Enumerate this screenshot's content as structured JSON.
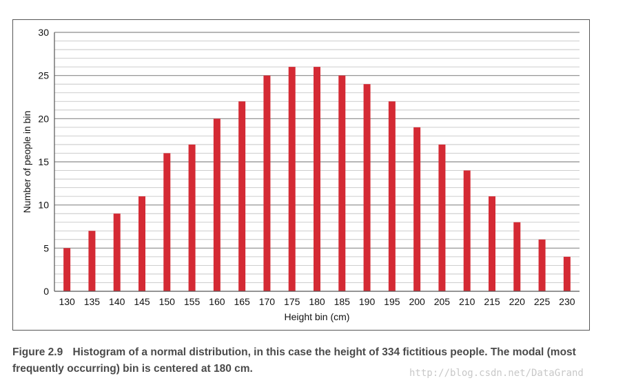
{
  "chart_data": {
    "type": "bar",
    "categories": [
      "130",
      "135",
      "140",
      "145",
      "150",
      "155",
      "160",
      "165",
      "170",
      "175",
      "180",
      "185",
      "190",
      "195",
      "200",
      "205",
      "210",
      "215",
      "220",
      "225",
      "230"
    ],
    "values": [
      5,
      7,
      9,
      11,
      16,
      17,
      20,
      22,
      25,
      26,
      26,
      25,
      24,
      22,
      19,
      17,
      14,
      11,
      8,
      6,
      4
    ],
    "xlabel": "Height bin (cm)",
    "ylabel": "Number of people in bin",
    "ylim": [
      0,
      30
    ],
    "yticks": [
      0,
      5,
      10,
      15,
      20,
      25,
      30
    ],
    "minor_grid_step": 1,
    "grid": true,
    "bar_color": "#d42a34"
  },
  "caption": {
    "figure_label": "Figure 2.9",
    "text": "Histogram of a normal distribution, in this case the height of 334 fictitious people. The modal (most frequently occurring) bin is centered at 180 cm."
  },
  "watermark": "http://blog.csdn.net/DataGrand"
}
